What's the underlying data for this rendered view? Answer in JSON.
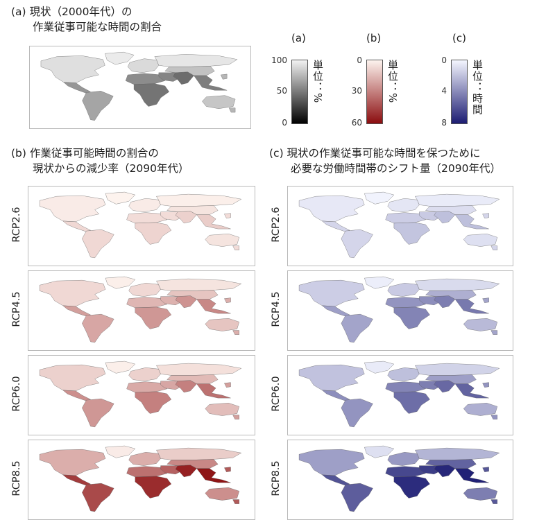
{
  "titles": {
    "a": "(a) 現状（2000年代）の\n　　作業従事可能な時間の割合",
    "b": "(b) 作業従事可能時間の割合の\n　　現状からの減少率（2090年代）",
    "c": "(c) 現状の作業従事可能な時間を保つために\n　　必要な労働時間帯のシフト量（2090年代）"
  },
  "scenarios": [
    "RCP2.6",
    "RCP4.5",
    "RCP6.0",
    "RCP8.5"
  ],
  "chart_data": [
    {
      "type": "heatmap",
      "panel": "(a)",
      "title": "現状（2000年代）の作業従事可能な時間の割合",
      "region_values": {
        "northAmerica": 92,
        "greenland": 97,
        "centralAmerica": 62,
        "southAmerica": 68,
        "europe": 90,
        "russia": 95,
        "northAfrica": 58,
        "subSaharanAfrica": 48,
        "middleEast": 55,
        "southAsia": 45,
        "eastAsia": 80,
        "seAsia": 52,
        "australia": 82,
        "islands": 75
      }
    },
    {
      "type": "heatmap",
      "panel": "(b)",
      "title": "作業従事可能時間の割合の現状からの減少率（2090年代）",
      "scenarios": [
        "RCP2.6",
        "RCP4.5",
        "RCP6.0",
        "RCP8.5"
      ],
      "region_values": {
        "RCP2.6": {
          "northAmerica": 2,
          "greenland": 0,
          "centralAmerica": 7,
          "southAmerica": 7,
          "europe": 2,
          "russia": 1,
          "northAfrica": 6,
          "subSaharanAfrica": 8,
          "middleEast": 6,
          "southAsia": 9,
          "eastAsia": 4,
          "seAsia": 10,
          "australia": 4,
          "islands": 6
        },
        "RCP4.5": {
          "northAmerica": 7,
          "greenland": 1,
          "centralAmerica": 22,
          "southAmerica": 20,
          "europe": 7,
          "russia": 4,
          "northAfrica": 16,
          "subSaharanAfrica": 24,
          "middleEast": 17,
          "southAsia": 25,
          "eastAsia": 12,
          "seAsia": 28,
          "australia": 12,
          "islands": 18
        },
        "RCP6.0": {
          "northAmerica": 9,
          "greenland": 1,
          "centralAmerica": 26,
          "southAmerica": 24,
          "europe": 9,
          "russia": 5,
          "northAfrica": 19,
          "subSaharanAfrica": 30,
          "middleEast": 20,
          "southAsia": 30,
          "eastAsia": 15,
          "seAsia": 34,
          "australia": 14,
          "islands": 22
        },
        "RCP8.5": {
          "northAmerica": 18,
          "greenland": 2,
          "centralAmerica": 48,
          "southAmerica": 44,
          "europe": 18,
          "russia": 10,
          "northAfrica": 34,
          "subSaharanAfrica": 52,
          "middleEast": 38,
          "southAsia": 55,
          "eastAsia": 28,
          "seAsia": 58,
          "australia": 26,
          "islands": 40
        }
      }
    },
    {
      "type": "heatmap",
      "panel": "(c)",
      "title": "現状の作業従事可能な時間を保つために必要な労働時間帯のシフト量（2090年代）",
      "scenarios": [
        "RCP2.6",
        "RCP4.5",
        "RCP6.0",
        "RCP8.5"
      ],
      "region_values": {
        "RCP2.6": {
          "northAmerica": 0.5,
          "greenland": 0.1,
          "centralAmerica": 1.2,
          "southAmerica": 1.2,
          "europe": 0.6,
          "russia": 0.4,
          "northAfrica": 1.5,
          "subSaharanAfrica": 1.8,
          "middleEast": 1.6,
          "southAsia": 2.0,
          "eastAsia": 0.9,
          "seAsia": 2.0,
          "australia": 0.8,
          "islands": 1.2
        },
        "RCP4.5": {
          "northAmerica": 1.5,
          "greenland": 0.3,
          "centralAmerica": 3.2,
          "southAmerica": 3.0,
          "europe": 1.6,
          "russia": 1.0,
          "northAfrica": 3.6,
          "subSaharanAfrica": 4.2,
          "middleEast": 3.8,
          "southAsia": 4.4,
          "eastAsia": 2.6,
          "seAsia": 4.6,
          "australia": 2.2,
          "islands": 3.0
        },
        "RCP6.0": {
          "northAmerica": 1.9,
          "greenland": 0.4,
          "centralAmerica": 3.8,
          "southAmerica": 3.6,
          "europe": 2.0,
          "russia": 1.3,
          "northAfrica": 4.2,
          "subSaharanAfrica": 5.0,
          "middleEast": 4.4,
          "southAsia": 5.2,
          "eastAsia": 3.2,
          "seAsia": 5.4,
          "australia": 2.6,
          "islands": 3.6
        },
        "RCP8.5": {
          "northAmerica": 3.2,
          "greenland": 0.8,
          "centralAmerica": 6.0,
          "southAmerica": 5.6,
          "europe": 3.4,
          "russia": 2.4,
          "northAfrica": 6.4,
          "subSaharanAfrica": 7.4,
          "middleEast": 6.8,
          "southAsia": 7.6,
          "eastAsia": 5.4,
          "seAsia": 7.8,
          "australia": 4.4,
          "islands": 5.8
        }
      }
    }
  ],
  "legends": [
    {
      "label": "(a)",
      "ticks": [
        "100",
        "50",
        "0"
      ],
      "unit": "単位：%",
      "min": 0,
      "max": 100,
      "low_color": "#000000",
      "high_color": "#f2f2f2"
    },
    {
      "label": "(b)",
      "ticks": [
        "0",
        "30",
        "60"
      ],
      "unit": "単位：%",
      "min": 0,
      "max": 60,
      "low_color": "#fdf3ee",
      "high_color": "#8b0d0f"
    },
    {
      "label": "(c)",
      "ticks": [
        "0",
        "4",
        "8"
      ],
      "unit": "単位：時間",
      "min": 0,
      "max": 8,
      "low_color": "#f4f6ff",
      "high_color": "#1c1c72"
    }
  ]
}
